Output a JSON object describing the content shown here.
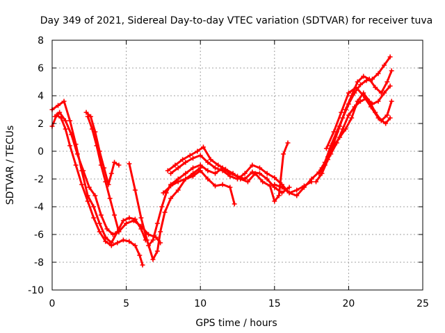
{
  "chart_data": {
    "type": "scatter",
    "title": "Day 349 of 2021, Sidereal Day-to-day VTEC variation (SDTVAR) for receiver tuva",
    "xlabel": "GPS time / hours",
    "ylabel": "SDTVAR / TECUs",
    "xlim": [
      0,
      25
    ],
    "ylim": [
      -10,
      8
    ],
    "xticks": [
      0,
      5,
      10,
      15,
      20,
      25
    ],
    "yticks": [
      -10,
      -8,
      -6,
      -4,
      -2,
      0,
      2,
      4,
      6,
      8
    ],
    "grid": true,
    "marker": "+",
    "color": "#ff0000",
    "series": [
      {
        "name": "trace-1",
        "x": [
          0.0,
          0.3,
          0.6,
          0.9,
          1.2,
          1.6,
          2.0,
          2.4,
          2.8,
          3.2,
          3.6,
          4.0,
          4.4,
          4.8,
          5.2,
          5.6,
          5.9,
          6.1
        ],
        "y": [
          1.8,
          2.6,
          2.4,
          1.6,
          0.4,
          -1.0,
          -2.4,
          -3.6,
          -4.8,
          -5.8,
          -6.5,
          -6.8,
          -6.6,
          -6.4,
          -6.5,
          -6.8,
          -7.5,
          -8.2
        ]
      },
      {
        "name": "trace-2",
        "x": [
          0.2,
          0.5,
          0.9,
          1.3,
          1.7,
          2.1,
          2.5,
          2.9,
          3.3,
          3.7,
          4.1,
          4.5,
          5.0,
          5.5,
          6.0,
          6.5,
          7.0,
          7.3
        ],
        "y": [
          2.5,
          2.8,
          2.2,
          1.2,
          -0.2,
          -1.4,
          -2.6,
          -3.2,
          -4.6,
          -5.6,
          -6.0,
          -5.8,
          -5.2,
          -5.0,
          -5.4,
          -6.0,
          -6.2,
          -6.6
        ]
      },
      {
        "name": "trace-3",
        "x": [
          0.0,
          0.4,
          0.8,
          1.2,
          1.6,
          2.0,
          2.4,
          2.8,
          3.2,
          3.6,
          4.0,
          4.4,
          4.8,
          5.2,
          5.6,
          6.0,
          6.3
        ],
        "y": [
          3.0,
          3.3,
          3.6,
          2.2,
          0.5,
          -1.4,
          -3.2,
          -4.0,
          -5.2,
          -6.2,
          -6.6,
          -5.8,
          -5.0,
          -4.8,
          -4.9,
          -5.6,
          -6.4
        ]
      },
      {
        "name": "trace-4",
        "x": [
          2.3,
          2.6,
          2.9,
          3.2,
          3.5,
          3.8,
          4.0,
          4.2,
          4.5
        ],
        "y": [
          2.8,
          2.5,
          1.4,
          0.0,
          -1.2,
          -2.4,
          -1.6,
          -0.8,
          -1.0
        ]
      },
      {
        "name": "trace-5",
        "x": [
          2.4,
          2.7,
          3.0,
          3.3,
          3.6,
          3.9,
          4.2,
          4.5
        ],
        "y": [
          2.5,
          1.6,
          0.4,
          -1.0,
          -2.2,
          -3.4,
          -4.6,
          -5.8
        ]
      },
      {
        "name": "trace-6",
        "x": [
          5.2,
          5.6,
          6.0,
          6.4,
          6.8,
          7.1,
          7.3,
          7.6,
          8.0,
          8.5,
          9.0,
          9.5,
          10.0
        ],
        "y": [
          -0.9,
          -2.8,
          -4.8,
          -6.4,
          -7.8,
          -7.2,
          -5.8,
          -4.4,
          -3.4,
          -2.8,
          -2.0,
          -1.6,
          -1.2
        ]
      },
      {
        "name": "trace-7",
        "x": [
          6.5,
          6.8,
          7.1,
          7.4,
          7.7,
          8.0,
          8.5,
          9.0,
          9.5,
          10.0,
          10.5,
          11.0,
          11.5,
          12.0,
          12.5,
          13.0,
          13.5,
          14.0,
          14.5,
          15.0,
          15.5,
          16.0
        ],
        "y": [
          -6.8,
          -6.4,
          -5.2,
          -4.0,
          -3.0,
          -2.4,
          -2.0,
          -1.6,
          -1.2,
          -1.0,
          -1.4,
          -1.6,
          -1.2,
          -1.6,
          -1.8,
          -2.0,
          -1.5,
          -1.6,
          -2.0,
          -2.6,
          -3.0,
          -2.6
        ]
      },
      {
        "name": "trace-8",
        "x": [
          7.5,
          8.0,
          8.5,
          9.0,
          9.5,
          10.0,
          10.5,
          11.0,
          11.5,
          12.0,
          12.3
        ],
        "y": [
          -3.0,
          -2.5,
          -2.2,
          -2.0,
          -1.8,
          -1.4,
          -2.0,
          -2.5,
          -2.4,
          -2.6,
          -3.8
        ]
      },
      {
        "name": "trace-9",
        "x": [
          7.8,
          8.3,
          8.8,
          9.3,
          9.8,
          10.2,
          10.7,
          11.2,
          11.7,
          12.2,
          12.7,
          13.2,
          13.7,
          14.2,
          14.7,
          15.0,
          15.3,
          15.6,
          15.9
        ],
        "y": [
          -1.4,
          -1.0,
          -0.6,
          -0.3,
          0.0,
          0.3,
          -0.6,
          -1.0,
          -1.3,
          -1.6,
          -2.0,
          -2.2,
          -1.6,
          -2.2,
          -2.5,
          -3.6,
          -3.2,
          -0.2,
          0.6
        ]
      },
      {
        "name": "trace-10",
        "x": [
          8.0,
          8.5,
          9.0,
          9.5,
          10.0,
          10.5,
          11.0,
          11.5,
          12.0,
          12.5,
          13.0,
          13.5,
          14.0,
          14.5,
          15.0,
          15.5,
          16.0,
          16.5,
          17.0,
          17.5
        ],
        "y": [
          -1.6,
          -1.2,
          -0.8,
          -0.5,
          -0.3,
          -0.8,
          -1.2,
          -1.4,
          -1.8,
          -2.0,
          -1.6,
          -1.0,
          -1.2,
          -1.6,
          -1.9,
          -2.4,
          -3.0,
          -2.8,
          -2.5,
          -2.2
        ]
      },
      {
        "name": "trace-11",
        "x": [
          15.0,
          15.5,
          16.0,
          16.5,
          17.0,
          17.5,
          18.0,
          18.4,
          18.8,
          19.2,
          19.6,
          20.0,
          20.4,
          20.8,
          21.2,
          21.6,
          22.0,
          22.4,
          22.8
        ],
        "y": [
          -2.4,
          -2.6,
          -3.0,
          -3.2,
          -2.6,
          -2.0,
          -1.5,
          -0.8,
          0.4,
          1.4,
          2.4,
          3.4,
          4.2,
          4.8,
          5.1,
          5.2,
          5.6,
          6.2,
          6.8
        ]
      },
      {
        "name": "trace-12",
        "x": [
          17.8,
          18.2,
          18.6,
          19.0,
          19.4,
          19.8,
          20.2,
          20.6,
          21.0,
          21.4,
          21.8,
          22.2,
          22.6,
          22.9
        ],
        "y": [
          -2.2,
          -1.6,
          -0.6,
          0.6,
          1.8,
          3.0,
          4.0,
          5.0,
          5.4,
          5.2,
          4.6,
          4.2,
          5.0,
          5.8
        ]
      },
      {
        "name": "trace-13",
        "x": [
          18.0,
          18.4,
          18.8,
          19.2,
          19.6,
          20.0,
          20.4,
          20.8,
          21.2,
          21.6,
          22.0,
          22.4,
          22.8
        ],
        "y": [
          -1.6,
          -1.0,
          -0.2,
          0.6,
          1.6,
          2.6,
          3.2,
          3.6,
          3.8,
          3.4,
          3.6,
          4.2,
          4.7
        ]
      },
      {
        "name": "trace-14",
        "x": [
          18.2,
          18.6,
          19.0,
          19.4,
          19.8,
          20.2,
          20.6,
          21.0,
          21.4,
          21.8,
          22.2,
          22.6,
          22.9
        ],
        "y": [
          -1.2,
          -0.4,
          0.4,
          1.0,
          1.6,
          2.4,
          3.6,
          4.2,
          3.6,
          2.8,
          2.2,
          2.6,
          3.6
        ]
      },
      {
        "name": "trace-15",
        "x": [
          18.5,
          19.0,
          19.5,
          20.0,
          20.5,
          21.0,
          21.5,
          22.0,
          22.5,
          22.8
        ],
        "y": [
          0.2,
          1.4,
          2.8,
          4.2,
          4.6,
          4.0,
          3.2,
          2.4,
          2.0,
          2.4
        ]
      }
    ]
  }
}
